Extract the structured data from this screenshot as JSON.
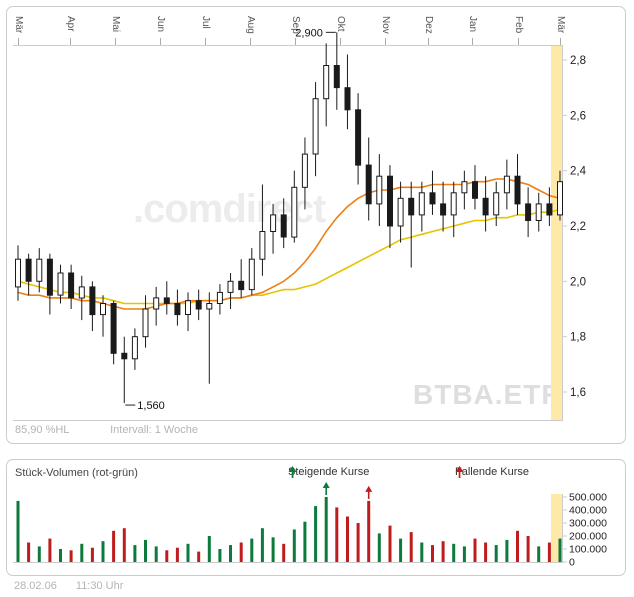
{
  "colors": {
    "up": "#0b7a3b",
    "down": "#bf1d1d",
    "ma_fast": "#ef7d14",
    "ma_slow": "#e6c300",
    "highlight_band": "#ffe9a8",
    "candle": "#1a1a1a",
    "axis": "#cccccc",
    "watermark_brand": "#ececec",
    "watermark_symbol": "#dedede",
    "muted_text": "#b4b4b4"
  },
  "price_panel": {
    "hl_label": "85,90 %HL",
    "interval_label": "Intervall: 1 Woche",
    "watermark_brand": ".comdirect",
    "watermark_symbol": "BTBA.ETR"
  },
  "volume_panel": {
    "title": "Stück-Volumen (rot-grün)",
    "legend_rising": "Steigende Kurse",
    "legend_falling": "Fallende Kurse"
  },
  "status_bar": {
    "date": "28.02.06",
    "time": "11:30 Uhr"
  },
  "chart_data": {
    "type": "candlestick",
    "interval": "1 Woche",
    "legend_position": "top-of-volume-panel",
    "grid": false,
    "months": [
      "Mär",
      "Apr",
      "Mai",
      "Jun",
      "Jul",
      "Aug",
      "Sep",
      "Okt",
      "Nov",
      "Dez",
      "Jan",
      "Feb",
      "Mär"
    ],
    "price_axis": {
      "labels": [
        "2,8",
        "2,6",
        "2,4",
        "2,2",
        "2,0",
        "1,8",
        "1,6"
      ],
      "values": [
        2.8,
        2.6,
        2.4,
        2.2,
        2.0,
        1.8,
        1.6
      ],
      "range": [
        1.5,
        2.86
      ]
    },
    "volume_axis": {
      "labels": [
        "500.000",
        "400.000",
        "300.000",
        "200.000",
        "100.000",
        "0"
      ],
      "values": [
        500000,
        400000,
        300000,
        200000,
        100000,
        0
      ],
      "range": [
        0,
        520000
      ]
    },
    "annotations": {
      "max_label": "2,900",
      "max_value": 2.9,
      "min_label": "1,560",
      "min_value": 1.56
    },
    "weeks": [
      [
        1.98,
        2.13,
        1.93,
        2.08,
        470000
      ],
      [
        2.08,
        2.1,
        1.95,
        2.0,
        150000
      ],
      [
        2.0,
        2.12,
        1.96,
        2.08,
        120000
      ],
      [
        2.08,
        2.1,
        1.88,
        1.95,
        180000
      ],
      [
        1.95,
        2.06,
        1.92,
        2.03,
        100000
      ],
      [
        2.03,
        2.06,
        1.9,
        1.94,
        90000
      ],
      [
        1.94,
        2.02,
        1.86,
        1.98,
        140000
      ],
      [
        1.98,
        2.0,
        1.82,
        1.88,
        110000
      ],
      [
        1.88,
        1.95,
        1.8,
        1.92,
        160000
      ],
      [
        1.92,
        1.93,
        1.7,
        1.74,
        240000
      ],
      [
        1.74,
        1.8,
        1.56,
        1.72,
        260000
      ],
      [
        1.72,
        1.83,
        1.68,
        1.8,
        130000
      ],
      [
        1.8,
        1.95,
        1.76,
        1.9,
        170000
      ],
      [
        1.9,
        1.98,
        1.84,
        1.94,
        120000
      ],
      [
        1.94,
        2.0,
        1.88,
        1.92,
        90000
      ],
      [
        1.92,
        1.97,
        1.84,
        1.88,
        110000
      ],
      [
        1.88,
        1.96,
        1.82,
        1.93,
        140000
      ],
      [
        1.93,
        1.97,
        1.86,
        1.9,
        80000
      ],
      [
        1.9,
        1.96,
        1.63,
        1.92,
        200000
      ],
      [
        1.92,
        1.99,
        1.88,
        1.96,
        100000
      ],
      [
        1.96,
        2.03,
        1.9,
        2.0,
        130000
      ],
      [
        2.0,
        2.08,
        1.94,
        1.97,
        150000
      ],
      [
        1.97,
        2.12,
        1.95,
        2.08,
        180000
      ],
      [
        2.08,
        2.35,
        2.02,
        2.18,
        260000
      ],
      [
        2.18,
        2.28,
        2.1,
        2.24,
        190000
      ],
      [
        2.24,
        2.3,
        2.12,
        2.16,
        140000
      ],
      [
        2.16,
        2.4,
        2.14,
        2.34,
        250000
      ],
      [
        2.34,
        2.52,
        2.26,
        2.46,
        310000
      ],
      [
        2.46,
        2.72,
        2.38,
        2.66,
        430000
      ],
      [
        2.66,
        2.86,
        2.56,
        2.78,
        500000
      ],
      [
        2.78,
        2.9,
        2.62,
        2.7,
        420000
      ],
      [
        2.7,
        2.82,
        2.55,
        2.62,
        350000
      ],
      [
        2.62,
        2.68,
        2.35,
        2.42,
        300000
      ],
      [
        2.42,
        2.52,
        2.22,
        2.28,
        470000
      ],
      [
        2.28,
        2.46,
        2.2,
        2.38,
        220000
      ],
      [
        2.38,
        2.42,
        2.12,
        2.2,
        280000
      ],
      [
        2.2,
        2.36,
        2.14,
        2.3,
        180000
      ],
      [
        2.3,
        2.36,
        2.05,
        2.24,
        230000
      ],
      [
        2.24,
        2.36,
        2.18,
        2.32,
        150000
      ],
      [
        2.32,
        2.4,
        2.24,
        2.28,
        130000
      ],
      [
        2.28,
        2.36,
        2.18,
        2.24,
        160000
      ],
      [
        2.24,
        2.36,
        2.16,
        2.32,
        140000
      ],
      [
        2.32,
        2.4,
        2.26,
        2.36,
        120000
      ],
      [
        2.36,
        2.42,
        2.26,
        2.3,
        180000
      ],
      [
        2.3,
        2.38,
        2.18,
        2.24,
        150000
      ],
      [
        2.24,
        2.36,
        2.2,
        2.32,
        130000
      ],
      [
        2.32,
        2.44,
        2.26,
        2.38,
        170000
      ],
      [
        2.38,
        2.46,
        2.24,
        2.28,
        240000
      ],
      [
        2.28,
        2.34,
        2.16,
        2.22,
        200000
      ],
      [
        2.22,
        2.32,
        2.18,
        2.28,
        120000
      ],
      [
        2.28,
        2.34,
        2.2,
        2.24,
        150000
      ],
      [
        2.24,
        2.4,
        2.22,
        2.36,
        180000
      ]
    ],
    "ma_fast": [
      1.96,
      1.95,
      1.95,
      1.94,
      1.94,
      1.94,
      1.93,
      1.93,
      1.92,
      1.91,
      1.9,
      1.9,
      1.9,
      1.91,
      1.92,
      1.92,
      1.93,
      1.93,
      1.93,
      1.93,
      1.94,
      1.94,
      1.95,
      1.96,
      1.98,
      2.0,
      2.03,
      2.07,
      2.12,
      2.18,
      2.23,
      2.27,
      2.3,
      2.32,
      2.33,
      2.33,
      2.34,
      2.34,
      2.34,
      2.35,
      2.35,
      2.35,
      2.35,
      2.36,
      2.36,
      2.37,
      2.37,
      2.36,
      2.35,
      2.33,
      2.31,
      2.3
    ],
    "ma_slow": [
      2.0,
      1.99,
      1.98,
      1.97,
      1.96,
      1.96,
      1.95,
      1.94,
      1.94,
      1.93,
      1.92,
      1.92,
      1.92,
      1.92,
      1.92,
      1.92,
      1.92,
      1.93,
      1.93,
      1.93,
      1.94,
      1.94,
      1.95,
      1.95,
      1.96,
      1.97,
      1.97,
      1.98,
      1.99,
      2.01,
      2.03,
      2.05,
      2.07,
      2.09,
      2.11,
      2.13,
      2.15,
      2.16,
      2.17,
      2.18,
      2.19,
      2.2,
      2.21,
      2.22,
      2.22,
      2.23,
      2.23,
      2.24,
      2.24,
      2.25,
      2.25,
      2.26
    ],
    "volume_markers": [
      {
        "index": 29,
        "trend": "rising"
      },
      {
        "index": 33,
        "trend": "falling"
      }
    ]
  }
}
